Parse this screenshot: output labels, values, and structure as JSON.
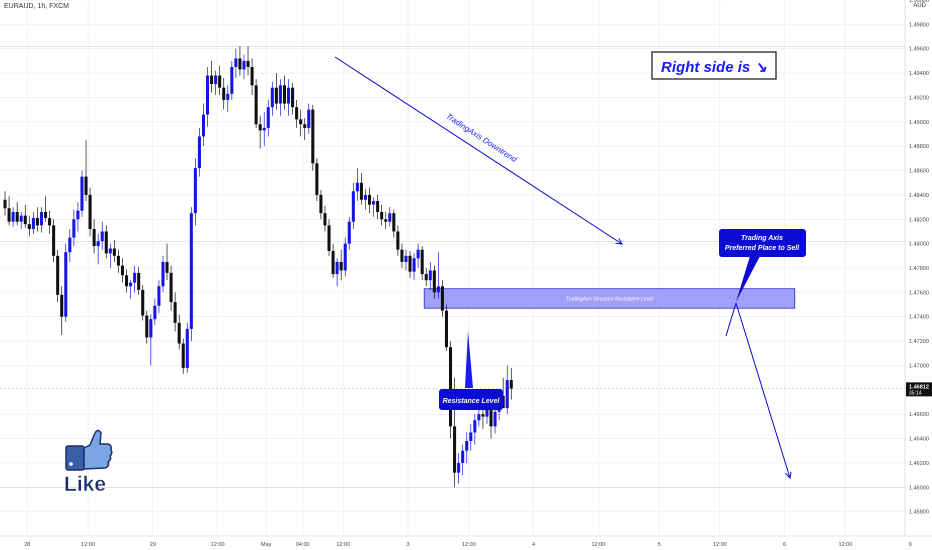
{
  "symbol_header": "EURAUD, 1h, FXCM",
  "currency": "AUD",
  "colors": {
    "up": "#1515e6",
    "down": "#111111",
    "zone_fill": "#8f8ff7",
    "zone_border": "#2a2acc",
    "callout": "#0b0bd4",
    "price_tag": "#111111",
    "grid": "#e9e9ee"
  },
  "chart_data": {
    "type": "candlestick",
    "ylim": [
      1.456,
      1.5
    ],
    "y_ticks": [
      "1.50000",
      "1.49800",
      "1.49600",
      "1.49400",
      "1.49200",
      "1.49000",
      "1.48800",
      "1.48600",
      "1.48400",
      "1.48200",
      "1.48000",
      "1.47800",
      "1.47600",
      "1.47400",
      "1.47200",
      "1.47000",
      "1.46600",
      "1.46400",
      "1.46200",
      "1.46000",
      "1.45800"
    ],
    "y_tick_values": [
      1.5,
      1.498,
      1.496,
      1.494,
      1.492,
      1.49,
      1.488,
      1.486,
      1.484,
      1.482,
      1.48,
      1.478,
      1.476,
      1.474,
      1.472,
      1.47,
      1.466,
      1.464,
      1.462,
      1.46,
      1.458
    ],
    "x_ticks": [
      "28",
      "12:00",
      "29",
      "12:00",
      "May",
      "04:00",
      "12:00",
      "3",
      "12:00",
      "4",
      "12:00",
      "5",
      "12:00",
      "6",
      "12:00",
      "9"
    ],
    "x_tick_index": [
      6,
      21,
      37,
      53,
      65,
      74,
      84,
      100,
      115,
      131,
      147,
      162,
      177,
      193,
      208,
      224
    ],
    "current_price": "1.46812",
    "current_price_value": 1.46812,
    "countdown": "35:14",
    "resistance_zone": [
      1.4747,
      1.4763
    ],
    "candles": [
      [
        1.4836,
        1.4843,
        1.4823,
        1.4829
      ],
      [
        1.4829,
        1.4839,
        1.4815,
        1.4818
      ],
      [
        1.4818,
        1.483,
        1.4814,
        1.4826
      ],
      [
        1.4826,
        1.4834,
        1.4815,
        1.4818
      ],
      [
        1.4818,
        1.4826,
        1.4812,
        1.4823
      ],
      [
        1.4823,
        1.4832,
        1.4813,
        1.4816
      ],
      [
        1.4816,
        1.4823,
        1.4806,
        1.4812
      ],
      [
        1.4812,
        1.4826,
        1.4808,
        1.4821
      ],
      [
        1.4821,
        1.483,
        1.481,
        1.4815
      ],
      [
        1.4815,
        1.483,
        1.4809,
        1.4826
      ],
      [
        1.4826,
        1.4839,
        1.4818,
        1.4821
      ],
      [
        1.4821,
        1.4827,
        1.4808,
        1.4815
      ],
      [
        1.4815,
        1.482,
        1.4785,
        1.479
      ],
      [
        1.479,
        1.4795,
        1.4752,
        1.4758
      ],
      [
        1.4758,
        1.4765,
        1.4725,
        1.474
      ],
      [
        1.474,
        1.48,
        1.4736,
        1.4793
      ],
      [
        1.4793,
        1.4812,
        1.4785,
        1.4805
      ],
      [
        1.4805,
        1.4828,
        1.4798,
        1.482
      ],
      [
        1.482,
        1.4834,
        1.481,
        1.4827
      ],
      [
        1.4827,
        1.486,
        1.4822,
        1.4855
      ],
      [
        1.4855,
        1.4885,
        1.4835,
        1.484
      ],
      [
        1.484,
        1.4846,
        1.4806,
        1.4812
      ],
      [
        1.4812,
        1.482,
        1.4792,
        1.4798
      ],
      [
        1.4798,
        1.4808,
        1.4783,
        1.4802
      ],
      [
        1.4802,
        1.4818,
        1.4795,
        1.481
      ],
      [
        1.481,
        1.4815,
        1.4788,
        1.4792
      ],
      [
        1.4792,
        1.48,
        1.478,
        1.4796
      ],
      [
        1.4796,
        1.4803,
        1.4785,
        1.479
      ],
      [
        1.479,
        1.4795,
        1.4776,
        1.4782
      ],
      [
        1.4782,
        1.4788,
        1.4768,
        1.4774
      ],
      [
        1.4774,
        1.4779,
        1.476,
        1.4765
      ],
      [
        1.4765,
        1.477,
        1.4755,
        1.4768
      ],
      [
        1.4768,
        1.4782,
        1.476,
        1.4776
      ],
      [
        1.4776,
        1.4781,
        1.4758,
        1.4762
      ],
      [
        1.4762,
        1.4766,
        1.4737,
        1.4741
      ],
      [
        1.4741,
        1.4745,
        1.4718,
        1.4723
      ],
      [
        1.4723,
        1.4742,
        1.47,
        1.4738
      ],
      [
        1.4738,
        1.4755,
        1.4733,
        1.4749
      ],
      [
        1.4749,
        1.477,
        1.4743,
        1.4765
      ],
      [
        1.4765,
        1.479,
        1.476,
        1.4785
      ],
      [
        1.4785,
        1.48,
        1.477,
        1.4776
      ],
      [
        1.4776,
        1.4782,
        1.4745,
        1.4752
      ],
      [
        1.4752,
        1.476,
        1.4728,
        1.4735
      ],
      [
        1.4735,
        1.4742,
        1.4713,
        1.4718
      ],
      [
        1.4718,
        1.4722,
        1.4693,
        1.4698
      ],
      [
        1.4698,
        1.4735,
        1.4694,
        1.473
      ],
      [
        1.473,
        1.483,
        1.472,
        1.4825
      ],
      [
        1.4825,
        1.487,
        1.4815,
        1.4862
      ],
      [
        1.4862,
        1.4895,
        1.4855,
        1.4888
      ],
      [
        1.4888,
        1.4915,
        1.488,
        1.4906
      ],
      [
        1.4906,
        1.4945,
        1.4896,
        1.4938
      ],
      [
        1.4938,
        1.495,
        1.4924,
        1.4931
      ],
      [
        1.4931,
        1.4942,
        1.4922,
        1.4938
      ],
      [
        1.4938,
        1.4946,
        1.4922,
        1.4928
      ],
      [
        1.4928,
        1.4936,
        1.491,
        1.4918
      ],
      [
        1.4918,
        1.493,
        1.4908,
        1.4923
      ],
      [
        1.4923,
        1.495,
        1.4918,
        1.4945
      ],
      [
        1.4945,
        1.496,
        1.4936,
        1.4952
      ],
      [
        1.4952,
        1.4962,
        1.4938,
        1.4943
      ],
      [
        1.4943,
        1.4955,
        1.4935,
        1.495
      ],
      [
        1.495,
        1.4962,
        1.4938,
        1.4945
      ],
      [
        1.4945,
        1.4952,
        1.4922,
        1.493
      ],
      [
        1.493,
        1.4935,
        1.4895,
        1.4898
      ],
      [
        1.4898,
        1.4905,
        1.4878,
        1.4893
      ],
      [
        1.4893,
        1.4908,
        1.488,
        1.4895
      ],
      [
        1.4895,
        1.4918,
        1.4888,
        1.4912
      ],
      [
        1.4912,
        1.4933,
        1.4905,
        1.4928
      ],
      [
        1.4928,
        1.494,
        1.491,
        1.4915
      ],
      [
        1.4915,
        1.4935,
        1.4905,
        1.493
      ],
      [
        1.493,
        1.4938,
        1.491,
        1.4915
      ],
      [
        1.4915,
        1.4935,
        1.4905,
        1.4928
      ],
      [
        1.4928,
        1.4932,
        1.4906,
        1.4912
      ],
      [
        1.4912,
        1.4918,
        1.4895,
        1.4902
      ],
      [
        1.4902,
        1.491,
        1.4888,
        1.4898
      ],
      [
        1.4898,
        1.4903,
        1.4885,
        1.4895
      ],
      [
        1.4895,
        1.4915,
        1.489,
        1.491
      ],
      [
        1.491,
        1.4914,
        1.486,
        1.4866
      ],
      [
        1.4866,
        1.487,
        1.4835,
        1.484
      ],
      [
        1.484,
        1.4844,
        1.482,
        1.4825
      ],
      [
        1.4825,
        1.4831,
        1.481,
        1.4815
      ],
      [
        1.4815,
        1.482,
        1.479,
        1.4794
      ],
      [
        1.4794,
        1.48,
        1.4772,
        1.4775
      ],
      [
        1.4775,
        1.4788,
        1.4765,
        1.4785
      ],
      [
        1.4785,
        1.4795,
        1.477,
        1.4778
      ],
      [
        1.4778,
        1.4805,
        1.4773,
        1.48
      ],
      [
        1.48,
        1.4822,
        1.4795,
        1.4818
      ],
      [
        1.4818,
        1.485,
        1.4812,
        1.4843
      ],
      [
        1.4843,
        1.4862,
        1.4835,
        1.485
      ],
      [
        1.485,
        1.4858,
        1.4832,
        1.4836
      ],
      [
        1.4836,
        1.4845,
        1.4828,
        1.484
      ],
      [
        1.484,
        1.4846,
        1.4825,
        1.4832
      ],
      [
        1.4832,
        1.4838,
        1.4822,
        1.4835
      ],
      [
        1.4835,
        1.484,
        1.482,
        1.4826
      ],
      [
        1.4826,
        1.4832,
        1.4815,
        1.482
      ],
      [
        1.482,
        1.4826,
        1.4812,
        1.4818
      ],
      [
        1.4818,
        1.483,
        1.4814,
        1.4825
      ],
      [
        1.4825,
        1.4828,
        1.4805,
        1.481
      ],
      [
        1.481,
        1.4815,
        1.479,
        1.4795
      ],
      [
        1.4795,
        1.48,
        1.478,
        1.4785
      ],
      [
        1.4785,
        1.4795,
        1.4778,
        1.479
      ],
      [
        1.479,
        1.4794,
        1.4772,
        1.4777
      ],
      [
        1.4777,
        1.4792,
        1.477,
        1.4788
      ],
      [
        1.4788,
        1.48,
        1.478,
        1.4795
      ],
      [
        1.4795,
        1.4798,
        1.477,
        1.4775
      ],
      [
        1.4775,
        1.478,
        1.4765,
        1.477
      ],
      [
        1.477,
        1.4785,
        1.4762,
        1.4778
      ],
      [
        1.4778,
        1.4782,
        1.4755,
        1.476
      ],
      [
        1.476,
        1.4793,
        1.4755,
        1.4765
      ],
      [
        1.4765,
        1.477,
        1.474,
        1.4745
      ],
      [
        1.4745,
        1.475,
        1.4712,
        1.4715
      ],
      [
        1.4715,
        1.472,
        1.464,
        1.465
      ],
      [
        1.465,
        1.469,
        1.46,
        1.4612
      ],
      [
        1.4612,
        1.4628,
        1.4603,
        1.462
      ],
      [
        1.462,
        1.4635,
        1.461,
        1.463
      ],
      [
        1.463,
        1.4645,
        1.462,
        1.4638
      ],
      [
        1.4638,
        1.4652,
        1.463,
        1.4645
      ],
      [
        1.4645,
        1.466,
        1.4635,
        1.4655
      ],
      [
        1.4655,
        1.4668,
        1.465,
        1.466
      ],
      [
        1.466,
        1.467,
        1.4648,
        1.4658
      ],
      [
        1.4658,
        1.4675,
        1.4652,
        1.467
      ],
      [
        1.467,
        1.4675,
        1.464,
        1.465
      ],
      [
        1.465,
        1.4668,
        1.4644,
        1.4662
      ],
      [
        1.4662,
        1.468,
        1.4655,
        1.4675
      ],
      [
        1.4675,
        1.469,
        1.4665,
        1.4665
      ],
      [
        1.4665,
        1.47,
        1.466,
        1.4688
      ],
      [
        1.4688,
        1.4698,
        1.4672,
        1.4681
      ]
    ]
  },
  "annotations": {
    "downtrend_label": "TradingAxis Downtrend",
    "zone_label": "TradingAxis Structure Resistance Level",
    "resistance_label": "Resistance Level",
    "sell_label_line1": "Trading Axis",
    "sell_label_line2": "Preferred Place to Sell",
    "right_side_label": "Right side is ↘",
    "like_label": "Like"
  }
}
